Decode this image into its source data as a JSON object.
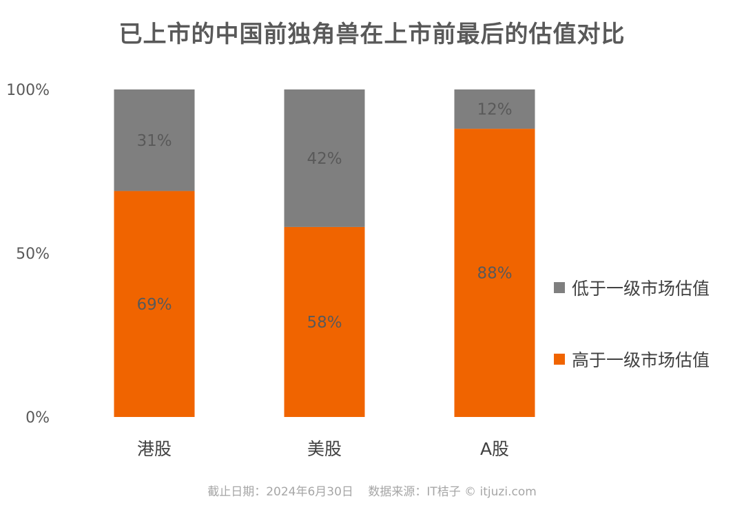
{
  "chart_data": {
    "type": "bar",
    "stacked": true,
    "title": "已上市的中国前独角兽在上市前最后的估值对比",
    "categories": [
      "港股",
      "美股",
      "A股"
    ],
    "series": [
      {
        "name": "高于一级市场估值",
        "values": [
          69,
          58,
          88
        ],
        "labels": [
          "69%",
          "58%",
          "88%"
        ],
        "color": "#f06400"
      },
      {
        "name": "低于一级市场估值",
        "values": [
          31,
          42,
          12
        ],
        "labels": [
          "31%",
          "42%",
          "12%"
        ],
        "color": "#7f7f7f"
      }
    ],
    "yticks": [
      "0%",
      "50%",
      "100%"
    ],
    "ylim": [
      0,
      100
    ],
    "grid": false,
    "legend": {
      "placement": "right",
      "items": [
        {
          "label": "低于一级市场估值",
          "color": "#7f7f7f"
        },
        {
          "label": "高于一级市场估值",
          "color": "#f06400"
        }
      ]
    }
  },
  "footer": {
    "date_text": "截止日期：2024年6月30日",
    "source_text": "数据来源：IT桔子 © itjuzi.com"
  }
}
